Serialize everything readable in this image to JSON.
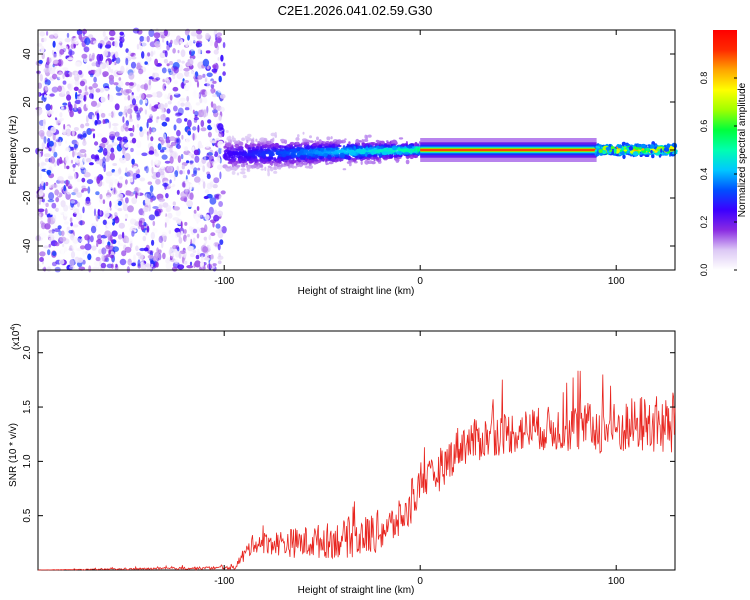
{
  "chart_data": [
    {
      "type": "heatmap",
      "title": "C2E1.2026.041.02.59.G30",
      "xlabel": "Height of straight line (km)",
      "ylabel": "Frequency (Hz)",
      "xlim": [
        -195,
        130
      ],
      "ylim": [
        -50,
        50
      ],
      "xticks": [
        -100,
        0,
        100
      ],
      "yticks": [
        -40,
        -20,
        0,
        20,
        40
      ],
      "colorbar": {
        "label": "Normalized spectral amplitude",
        "range": [
          0.0,
          1.0
        ],
        "ticks": [
          "0.0",
          "0.2",
          "0.4",
          "0.6",
          "0.8"
        ],
        "colors": [
          "#ffffff",
          "#dcc8f5",
          "#8a2be2",
          "#3b00ff",
          "#0050ff",
          "#00c8ff",
          "#00ffb0",
          "#00ff3c",
          "#a0ff00",
          "#ffff00",
          "#ffa500",
          "#ff2a00",
          "#ff0000"
        ]
      },
      "regions": [
        {
          "name": "noise",
          "x_range": [
            -195,
            -100
          ],
          "freq_range": [
            -50,
            50
          ],
          "amplitude": 0.1
        },
        {
          "name": "signal-emerging",
          "x_range": [
            -100,
            0
          ],
          "freq_center": 0,
          "freq_spread": [
            8,
            3
          ],
          "amplitude_range": [
            0.2,
            0.45
          ]
        },
        {
          "name": "signal-locked",
          "x_range": [
            0,
            90
          ],
          "freq_center": 0,
          "amplitude": 0.9
        },
        {
          "name": "signal-tail",
          "x_range": [
            90,
            130
          ],
          "freq_center": 0,
          "amplitude_range": [
            0.3,
            0.9
          ]
        }
      ]
    },
    {
      "type": "line",
      "xlabel": "Height of straight line (km)",
      "ylabel": "SNR (10 * v/v)",
      "y_scale_label": "(x10",
      "y_scale_exponent": "4",
      "xlim": [
        -195,
        130
      ],
      "ylim": [
        0,
        2.2
      ],
      "xticks": [
        -100,
        0,
        100
      ],
      "yticks": [
        0.5,
        1.0,
        1.5,
        2.0
      ],
      "ytick_labels": [
        "0.5",
        "1.0",
        "1.5",
        "2.0"
      ],
      "line_color": "#e8251f",
      "series_trend": [
        {
          "x": -195,
          "y": 0.0
        },
        {
          "x": -95,
          "y": 0.02
        },
        {
          "x": -85,
          "y": 0.25
        },
        {
          "x": -60,
          "y": 0.25
        },
        {
          "x": -30,
          "y": 0.3
        },
        {
          "x": -15,
          "y": 0.4
        },
        {
          "x": -5,
          "y": 0.55
        },
        {
          "x": 0,
          "y": 0.8
        },
        {
          "x": 10,
          "y": 0.9
        },
        {
          "x": 20,
          "y": 1.15
        },
        {
          "x": 40,
          "y": 1.25
        },
        {
          "x": 60,
          "y": 1.3
        },
        {
          "x": 80,
          "y": 1.3
        },
        {
          "x": 100,
          "y": 1.3
        },
        {
          "x": 115,
          "y": 1.35
        },
        {
          "x": 130,
          "y": 1.3
        }
      ],
      "series_noise": [
        {
          "x": -195,
          "y": 0.0
        },
        {
          "x": -95,
          "y": 0.03
        },
        {
          "x": -90,
          "y": 0.15
        },
        {
          "x": -60,
          "y": 0.3
        },
        {
          "x": -20,
          "y": 0.4
        },
        {
          "x": 0,
          "y": 0.3
        },
        {
          "x": 20,
          "y": 0.4
        },
        {
          "x": 60,
          "y": 0.4
        },
        {
          "x": 100,
          "y": 0.5
        },
        {
          "x": 130,
          "y": 0.6
        }
      ]
    }
  ]
}
